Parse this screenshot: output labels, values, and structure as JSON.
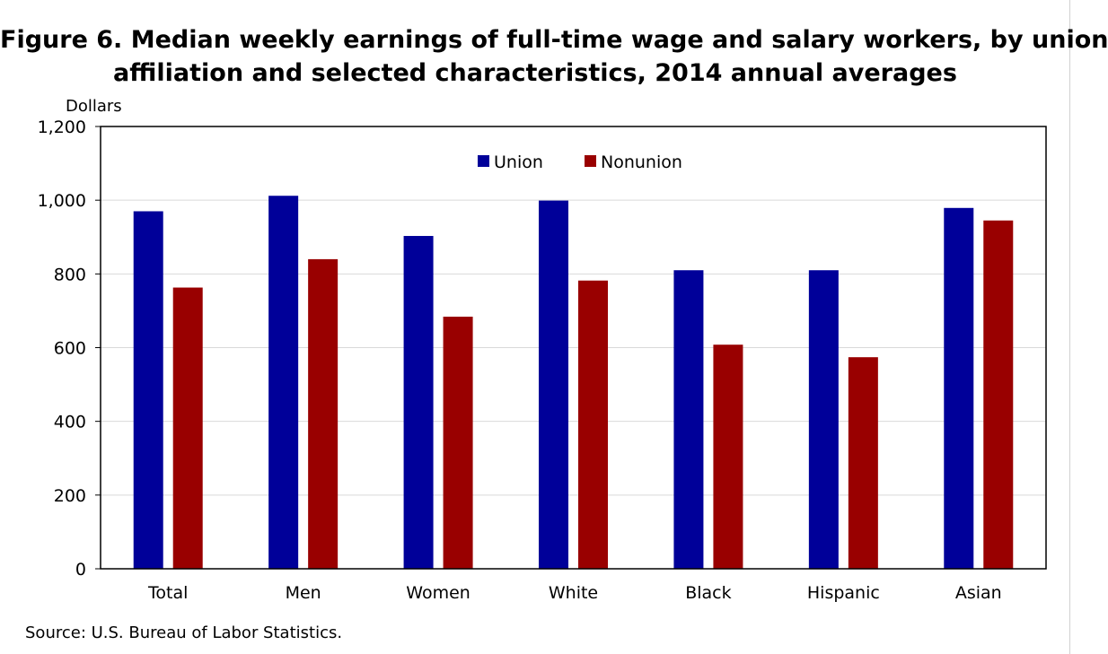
{
  "title_line1": "Figure 6. Median weekly earnings of full-time wage and salary workers, by union",
  "title_line2": "affiliation and selected characteristics, 2014 annual averages",
  "source": "Source: U.S. Bureau of Labor Statistics.",
  "chart_data": {
    "type": "bar",
    "ylabel": "Dollars",
    "ylim": [
      0,
      1200
    ],
    "yticks": [
      0,
      200,
      400,
      600,
      800,
      1000,
      1200
    ],
    "ytick_labels": [
      "0",
      "200",
      "400",
      "600",
      "800",
      "1,000",
      "1,200"
    ],
    "categories": [
      "Total",
      "Men",
      "Women",
      "White",
      "Black",
      "Hispanic",
      "Asian"
    ],
    "series": [
      {
        "name": "Union",
        "color": "#000099",
        "values": [
          970,
          1012,
          903,
          999,
          810,
          810,
          979
        ]
      },
      {
        "name": "Nonunion",
        "color": "#990000",
        "values": [
          763,
          840,
          684,
          782,
          608,
          574,
          945
        ]
      }
    ],
    "grid": true,
    "legend": "top-center"
  }
}
